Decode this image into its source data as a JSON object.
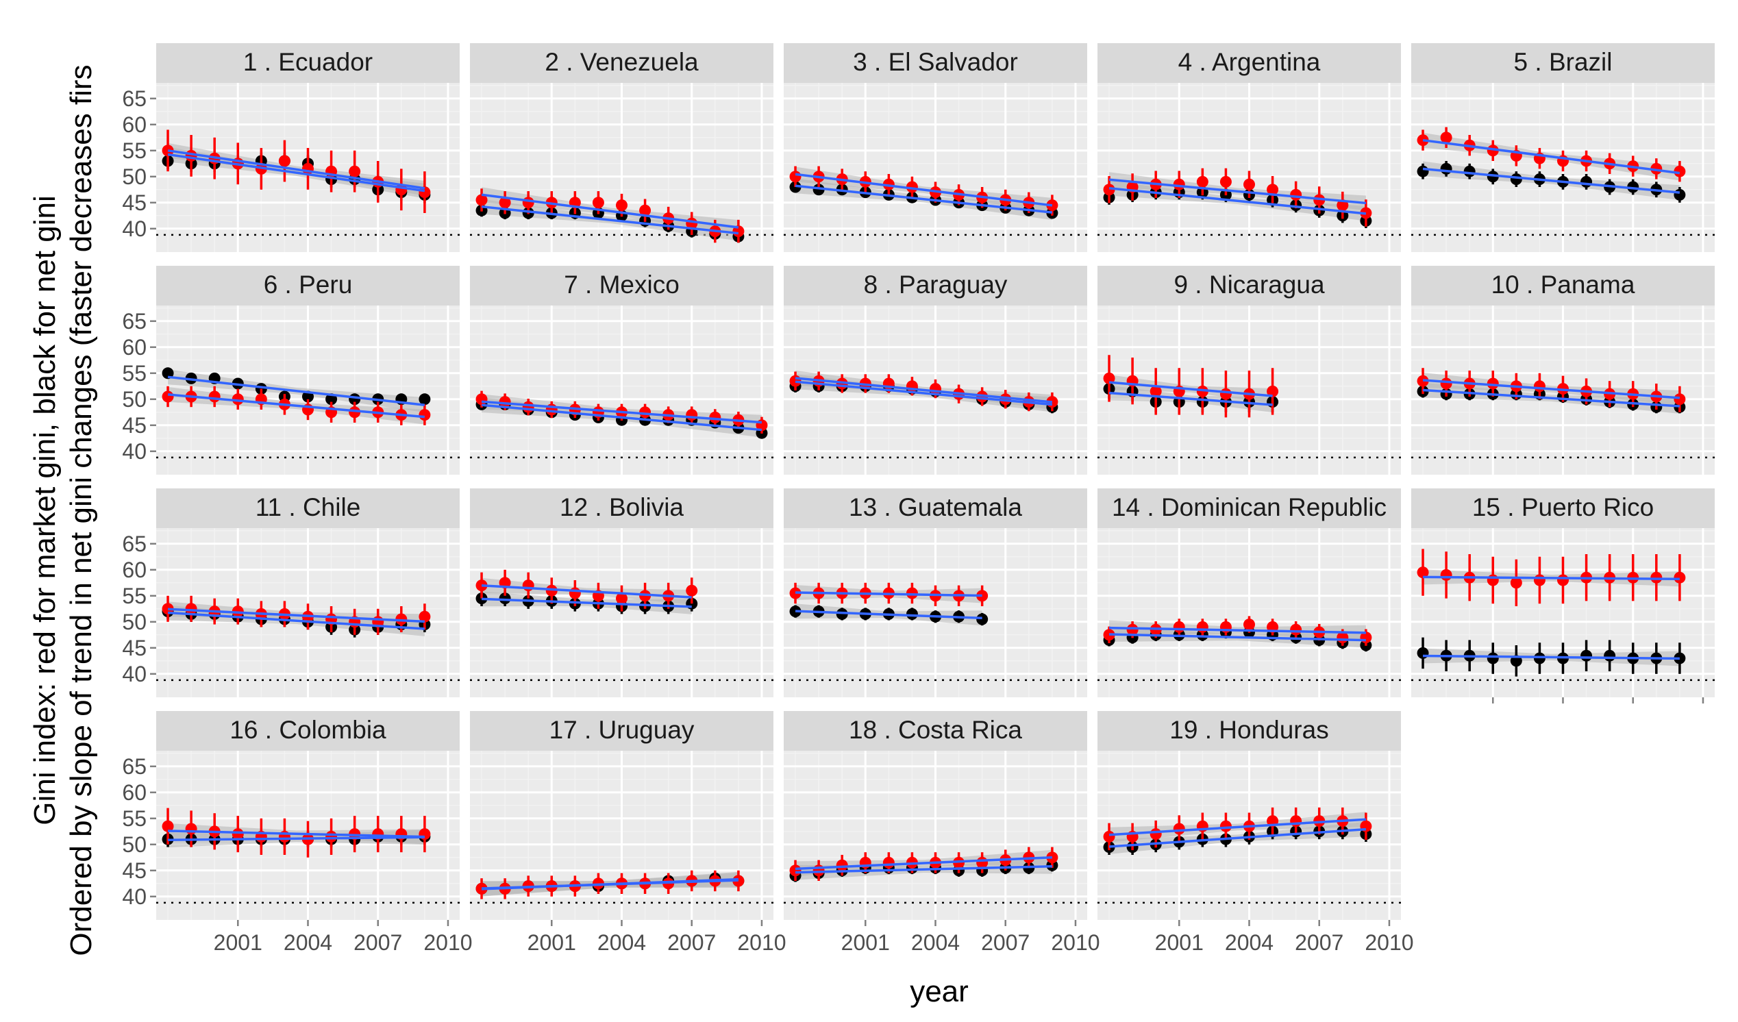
{
  "chart_data": {
    "type": "scatter",
    "title": "",
    "xlabel": "year",
    "ylabel_lines": [
      "Gini index: red for market gini, black for net gini",
      "Ordered by slope of trend in net gini changes (faster decreases firs"
    ],
    "x_ticks": [
      2001,
      2004,
      2007,
      2010
    ],
    "y_ticks": [
      40,
      45,
      50,
      55,
      60,
      65
    ],
    "xlim": [
      1997.5,
      2010.5
    ],
    "ylim": [
      35.5,
      68
    ],
    "reference_line": {
      "y": 38.8,
      "style": "dotted",
      "color": "#000000"
    },
    "grid": true,
    "colors": {
      "panel_bg": "#EBEBEB",
      "strip_bg": "#D9D9D9",
      "market": "#FF0000",
      "net": "#000000",
      "trend": "#3366FF",
      "band": "#B4B4B4",
      "axis_text": "#4D4D4D"
    },
    "series_meaning": {
      "market": "market gini (red)",
      "net": "net gini (black)"
    },
    "panels": [
      {
        "title": "1 .  Ecuador",
        "years": [
          1998,
          1999,
          2000,
          2001,
          2002,
          2003,
          2004,
          2005,
          2006,
          2007,
          2008,
          2009
        ],
        "market": [
          55,
          54,
          53.5,
          52.5,
          51.5,
          53,
          51.5,
          51,
          51,
          49,
          47.5,
          47
        ],
        "net": [
          53,
          52.5,
          52.5,
          52.5,
          53,
          53,
          52.5,
          49.5,
          49.5,
          47.5,
          47,
          46.5
        ],
        "market_err": 4,
        "net_err": 1.6
      },
      {
        "title": "2 .  Venezuela",
        "years": [
          1998,
          1999,
          2000,
          2001,
          2002,
          2003,
          2004,
          2005,
          2006,
          2007,
          2008,
          2009
        ],
        "market": [
          45.5,
          45,
          45,
          45,
          45,
          45,
          44.5,
          43.5,
          42,
          41,
          39.5,
          39.5
        ],
        "net": [
          43.5,
          43,
          43,
          43,
          43,
          43,
          42.5,
          41.5,
          40.5,
          39.5,
          39,
          38.5
        ],
        "market_err": 2.2,
        "net_err": 1.2
      },
      {
        "title": "3 .  El Salvador",
        "years": [
          1998,
          1999,
          2000,
          2001,
          2002,
          2003,
          2004,
          2005,
          2006,
          2007,
          2008,
          2009
        ],
        "market": [
          50,
          50,
          49.5,
          49,
          48.5,
          48,
          47,
          46.5,
          46,
          45.5,
          45,
          44.5
        ],
        "net": [
          48,
          47.5,
          47.5,
          47,
          46.5,
          46,
          45.5,
          45,
          44.5,
          44,
          43.5,
          43
        ],
        "market_err": 2,
        "net_err": 1
      },
      {
        "title": "4 .  Argentina",
        "years": [
          1998,
          1999,
          2000,
          2001,
          2002,
          2003,
          2004,
          2005,
          2006,
          2007,
          2008,
          2009
        ],
        "market": [
          47.5,
          48,
          48.5,
          48.5,
          49,
          49,
          48.5,
          47.5,
          46.5,
          45.5,
          44.5,
          43
        ],
        "net": [
          46,
          46.5,
          47,
          47,
          47,
          46.5,
          46.5,
          45.5,
          44.5,
          43.5,
          42.5,
          41.5
        ],
        "market_err": 2.6,
        "net_err": 1.4
      },
      {
        "title": "5 .  Brazil",
        "years": [
          1998,
          1999,
          2000,
          2001,
          2002,
          2003,
          2004,
          2005,
          2006,
          2007,
          2008,
          2009
        ],
        "market": [
          57,
          57.5,
          56,
          55,
          54,
          53.5,
          53,
          53,
          52.5,
          52,
          51.5,
          51
        ],
        "net": [
          51,
          51.5,
          51,
          50,
          49.5,
          49.5,
          49,
          49,
          48,
          48,
          47.5,
          46.5
        ],
        "market_err": 2,
        "net_err": 1.5
      },
      {
        "title": "6 .  Peru",
        "years": [
          1998,
          1999,
          2000,
          2001,
          2002,
          2003,
          2004,
          2005,
          2006,
          2007,
          2008,
          2009
        ],
        "market": [
          50.5,
          50.5,
          50.5,
          50,
          50,
          49,
          48,
          47.5,
          47.5,
          47.5,
          47,
          47
        ],
        "net": [
          55,
          54,
          54,
          53,
          52,
          50.5,
          50.5,
          50,
          50,
          50,
          50,
          50
        ],
        "market_err": 2,
        "net_err": 1
      },
      {
        "title": "7 .  Mexico",
        "years": [
          1998,
          1999,
          2000,
          2001,
          2002,
          2003,
          2004,
          2005,
          2006,
          2007,
          2008,
          2009,
          2010
        ],
        "market": [
          50,
          49.5,
          48.5,
          48,
          48,
          47.5,
          47.5,
          47.5,
          47,
          47,
          46.5,
          46,
          45
        ],
        "net": [
          49,
          49,
          48,
          47.5,
          47,
          46.5,
          46,
          46,
          46,
          46,
          45.5,
          44.5,
          43.5
        ],
        "market_err": 1.6,
        "net_err": 1
      },
      {
        "title": "8 .  Paraguay",
        "years": [
          1998,
          1999,
          2000,
          2001,
          2002,
          2003,
          2004,
          2005,
          2006,
          2007,
          2008,
          2009
        ],
        "market": [
          53.5,
          53.5,
          53,
          53,
          53,
          52.5,
          52,
          51,
          50.5,
          50,
          49.5,
          49.5
        ],
        "net": [
          52.5,
          52.5,
          52.5,
          52.5,
          52.5,
          52,
          51.5,
          51,
          50,
          49.5,
          49,
          48.5
        ],
        "market_err": 1.8,
        "net_err": 1.2
      },
      {
        "title": "9 .  Nicaragua",
        "years": [
          1998,
          1999,
          2000,
          2001,
          2002,
          2003,
          2004,
          2005
        ],
        "market": [
          54,
          53.5,
          51.5,
          51.5,
          51.5,
          51,
          51,
          51.5
        ],
        "net": [
          52,
          51.5,
          49.5,
          49.5,
          49.5,
          49.5,
          49.5,
          49.5
        ],
        "market_err": 4.5,
        "net_err": 2
      },
      {
        "title": "10 .  Panama",
        "years": [
          1998,
          1999,
          2000,
          2001,
          2002,
          2003,
          2004,
          2005,
          2006,
          2007,
          2008,
          2009
        ],
        "market": [
          53.5,
          53,
          53,
          53,
          52.5,
          52.5,
          52,
          51.5,
          51,
          51,
          50.5,
          50
        ],
        "net": [
          51.5,
          51,
          51,
          51,
          51,
          51,
          50.5,
          50,
          49.5,
          49,
          48.5,
          48.5
        ],
        "market_err": 2.5,
        "net_err": 1.2
      },
      {
        "title": "11 .  Chile",
        "years": [
          1998,
          1999,
          2000,
          2001,
          2002,
          2003,
          2004,
          2005,
          2006,
          2007,
          2008,
          2009
        ],
        "market": [
          52.5,
          52.5,
          52,
          52,
          51.5,
          51.5,
          51,
          50.5,
          50,
          50,
          50.5,
          51
        ],
        "net": [
          52,
          51.5,
          51.5,
          51,
          50.5,
          50.5,
          50,
          49,
          48.5,
          49,
          49.5,
          49.5
        ],
        "market_err": 2.5,
        "net_err": 1.5
      },
      {
        "title": "12 .  Bolivia",
        "years": [
          1998,
          1999,
          2000,
          2001,
          2002,
          2003,
          2004,
          2005,
          2006,
          2007
        ],
        "market": [
          57,
          57.5,
          57,
          56,
          55.5,
          55,
          54.5,
          55,
          55,
          56
        ],
        "net": [
          54.5,
          54.5,
          54,
          54,
          53.5,
          53.5,
          53,
          53,
          53,
          53.5
        ],
        "market_err": 2.5,
        "net_err": 1.5
      },
      {
        "title": "13 .  Guatemala",
        "years": [
          1998,
          1999,
          2000,
          2001,
          2002,
          2003,
          2004,
          2005,
          2006
        ],
        "market": [
          55.5,
          55.5,
          55.5,
          55.5,
          55.5,
          55.5,
          55,
          55,
          55
        ],
        "net": [
          52,
          52,
          51.5,
          51.5,
          51.5,
          51.5,
          51,
          51,
          50.5
        ],
        "market_err": 2,
        "net_err": 1.2
      },
      {
        "title": "14 .  Dominican Republic",
        "years": [
          1998,
          1999,
          2000,
          2001,
          2002,
          2003,
          2004,
          2005,
          2006,
          2007,
          2008,
          2009
        ],
        "market": [
          47.5,
          48.5,
          48.5,
          49,
          49,
          49,
          49.5,
          49,
          48.5,
          48,
          47,
          47
        ],
        "net": [
          46.5,
          47,
          47.5,
          47.5,
          47.5,
          48,
          48,
          47.5,
          47,
          46.5,
          46,
          45.5
        ],
        "market_err": 1.6,
        "net_err": 1.2
      },
      {
        "title": "15 .  Puerto Rico",
        "years": [
          1998,
          1999,
          2000,
          2001,
          2002,
          2003,
          2004,
          2005,
          2006,
          2007,
          2008,
          2009
        ],
        "market": [
          59.5,
          59,
          58.5,
          58,
          57.5,
          58,
          58,
          58.5,
          58.5,
          58.5,
          58.5,
          58.5
        ],
        "net": [
          44,
          43.5,
          43.5,
          43,
          42.5,
          43,
          43,
          43.5,
          43.5,
          43,
          43,
          43
        ],
        "market_err": 4.5,
        "net_err": 3
      },
      {
        "title": "16 .  Colombia",
        "years": [
          1998,
          1999,
          2000,
          2001,
          2002,
          2003,
          2004,
          2005,
          2006,
          2007,
          2008,
          2009
        ],
        "market": [
          53.5,
          53,
          52.5,
          52,
          51.5,
          51.5,
          51,
          51.5,
          52,
          52,
          52,
          52
        ],
        "net": [
          51,
          51,
          51,
          51,
          51,
          51,
          51,
          51,
          51,
          51.5,
          51.5,
          51.5
        ],
        "market_err": 3.5,
        "net_err": 1.5
      },
      {
        "title": "17 .  Uruguay",
        "years": [
          1998,
          1999,
          2000,
          2001,
          2002,
          2003,
          2004,
          2005,
          2006,
          2007,
          2008,
          2009
        ],
        "market": [
          41.5,
          41.5,
          42,
          42,
          42,
          42.5,
          42.5,
          42.5,
          42.5,
          43,
          43,
          43
        ],
        "net": [
          41.5,
          41.5,
          42,
          42,
          42,
          42,
          42.5,
          42.5,
          43,
          43,
          43.5,
          43
        ],
        "market_err": 2,
        "net_err": 1
      },
      {
        "title": "18 .  Costa Rica",
        "years": [
          1998,
          1999,
          2000,
          2001,
          2002,
          2003,
          2004,
          2005,
          2006,
          2007,
          2008,
          2009
        ],
        "market": [
          45,
          45,
          46,
          46.5,
          46.5,
          46.5,
          46.5,
          46.5,
          46.5,
          47,
          47.5,
          47.5
        ],
        "net": [
          44,
          44.5,
          45,
          45.5,
          45.5,
          45.5,
          45.5,
          45,
          45,
          45.5,
          45.5,
          46
        ],
        "market_err": 2,
        "net_err": 1.2
      },
      {
        "title": "19 .  Honduras",
        "years": [
          1998,
          1999,
          2000,
          2001,
          2002,
          2003,
          2004,
          2005,
          2006,
          2007,
          2008,
          2009
        ],
        "market": [
          51.5,
          51.5,
          52,
          53,
          53.5,
          53.5,
          53.5,
          54.5,
          54.5,
          54.5,
          54.5,
          53.5
        ],
        "net": [
          49.5,
          49.5,
          50,
          50.5,
          51,
          51,
          51.5,
          52.5,
          52.5,
          52.5,
          52.5,
          52
        ],
        "market_err": 2.6,
        "net_err": 1.5
      }
    ]
  }
}
